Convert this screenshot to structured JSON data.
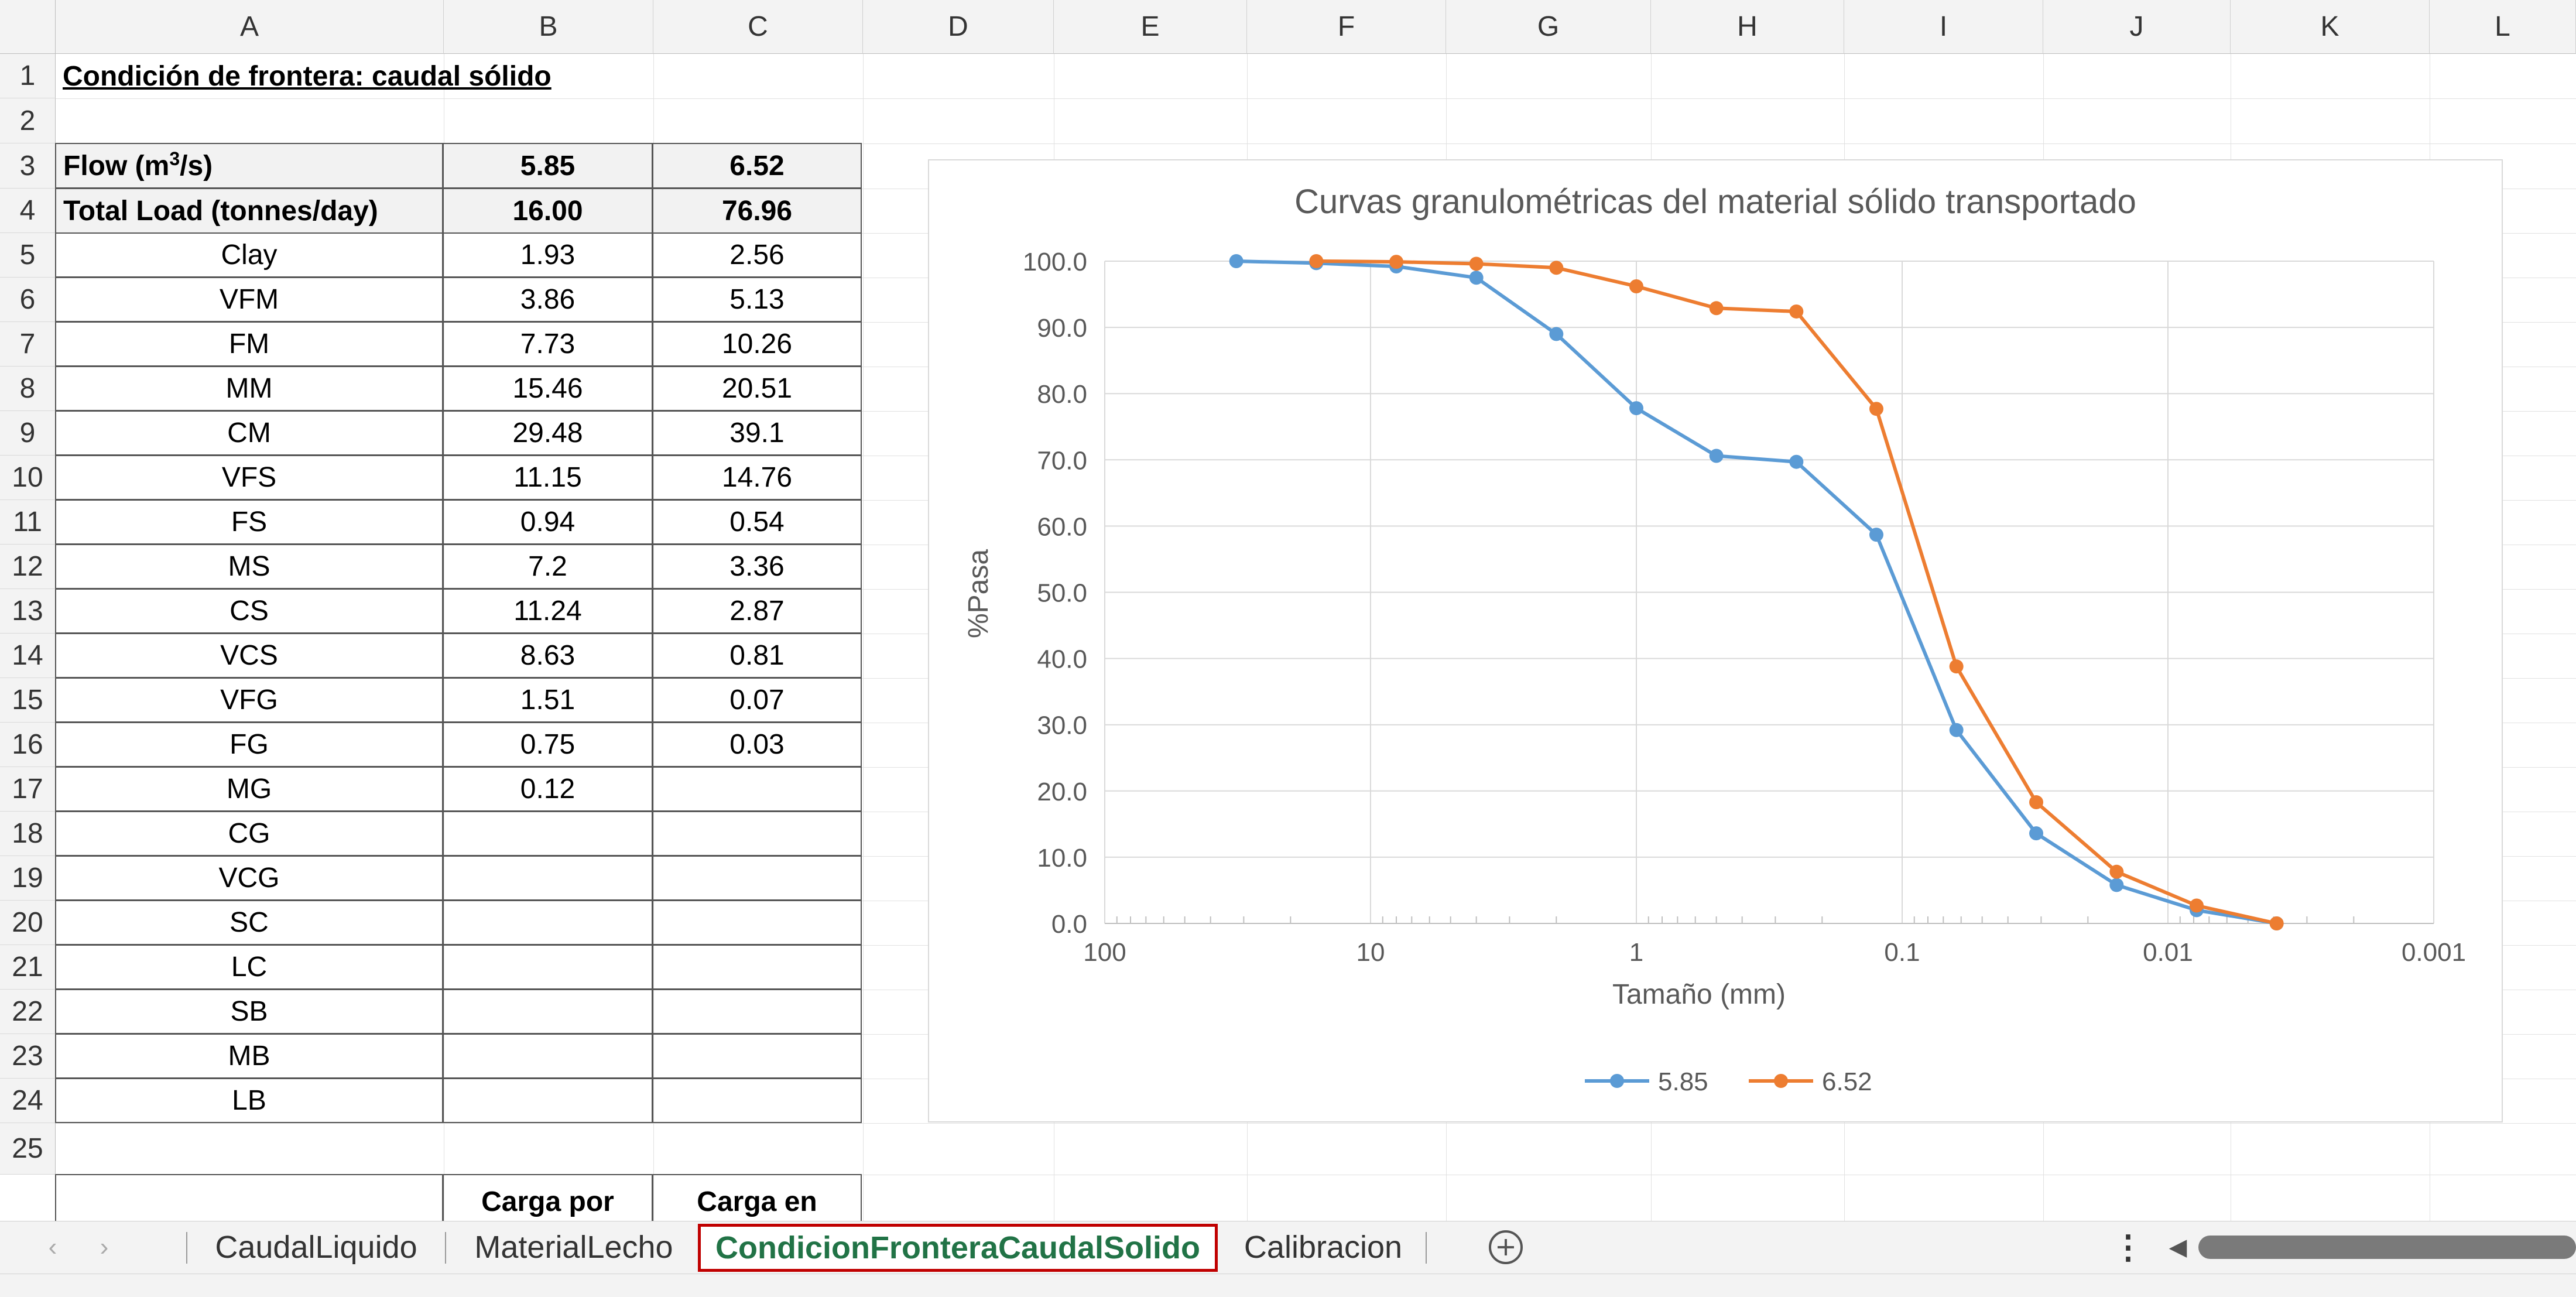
{
  "columns": [
    "A",
    "B",
    "C",
    "D",
    "E",
    "F",
    "G",
    "H",
    "I",
    "J",
    "K",
    "L"
  ],
  "rows": [
    "1",
    "2",
    "3",
    "4",
    "5",
    "6",
    "7",
    "8",
    "9",
    "10",
    "11",
    "12",
    "13",
    "14",
    "15",
    "16",
    "17",
    "18",
    "19",
    "20",
    "21",
    "22",
    "23",
    "24",
    "25"
  ],
  "sheet": {
    "title": "Condición de frontera: caudal sólido",
    "flow_label_pre": "Flow (m",
    "flow_label_sup": "3",
    "flow_label_post": "/s)",
    "flow_values": [
      "5.85",
      "6.52"
    ],
    "total_load_label": "Total Load (tonnes/day)",
    "total_load_values": [
      "16.00",
      "76.96"
    ],
    "fractions": [
      {
        "name": "Clay",
        "b": "1.93",
        "c": "2.56"
      },
      {
        "name": "VFM",
        "b": "3.86",
        "c": "5.13"
      },
      {
        "name": "FM",
        "b": "7.73",
        "c": "10.26"
      },
      {
        "name": "MM",
        "b": "15.46",
        "c": "20.51"
      },
      {
        "name": "CM",
        "b": "29.48",
        "c": "39.1"
      },
      {
        "name": "VFS",
        "b": "11.15",
        "c": "14.76"
      },
      {
        "name": "FS",
        "b": "0.94",
        "c": "0.54"
      },
      {
        "name": "MS",
        "b": "7.2",
        "c": "3.36"
      },
      {
        "name": "CS",
        "b": "11.24",
        "c": "2.87"
      },
      {
        "name": "VCS",
        "b": "8.63",
        "c": "0.81"
      },
      {
        "name": "VFG",
        "b": "1.51",
        "c": "0.07"
      },
      {
        "name": "FG",
        "b": "0.75",
        "c": "0.03"
      },
      {
        "name": "MG",
        "b": "0.12",
        "c": ""
      },
      {
        "name": "CG",
        "b": "",
        "c": ""
      },
      {
        "name": "VCG",
        "b": "",
        "c": ""
      },
      {
        "name": "SC",
        "b": "",
        "c": ""
      },
      {
        "name": "LC",
        "b": "",
        "c": ""
      },
      {
        "name": "SB",
        "b": "",
        "c": ""
      },
      {
        "name": "MB",
        "b": "",
        "c": ""
      },
      {
        "name": "LB",
        "b": "",
        "c": ""
      }
    ],
    "row26_b": "Carga por",
    "row26_c": "Carga en"
  },
  "chart_data": {
    "type": "line",
    "title": "Curvas granulométricas del material sólido transportado",
    "xlabel": "Tamaño (mm)",
    "ylabel": "%Pasa",
    "x_scale": "log-reversed",
    "xlim": [
      100,
      0.001
    ],
    "ylim": [
      0,
      100
    ],
    "x_ticks": [
      "100",
      "10",
      "1",
      "0.1",
      "0.01",
      "0.001"
    ],
    "y_ticks": [
      "0.0",
      "10.0",
      "20.0",
      "30.0",
      "40.0",
      "50.0",
      "60.0",
      "70.0",
      "80.0",
      "90.0",
      "100.0"
    ],
    "legend_position": "bottom",
    "series": [
      {
        "name": "5.85",
        "color": "#5b9bd5",
        "x": [
          32,
          16,
          8,
          4,
          2,
          1,
          0.5,
          0.25,
          0.125,
          0.0625,
          0.0313,
          0.0156,
          0.0078,
          0.0039
        ],
        "y": [
          100,
          99.7,
          99.2,
          97.5,
          89,
          77.8,
          70.6,
          69.7,
          58.7,
          29.2,
          13.6,
          5.8,
          2,
          0
        ]
      },
      {
        "name": "6.52",
        "color": "#ed7d31",
        "x": [
          16,
          8,
          4,
          2,
          1,
          0.5,
          0.25,
          0.125,
          0.0625,
          0.0313,
          0.0156,
          0.0078,
          0.0039
        ],
        "y": [
          100,
          99.9,
          99.6,
          99,
          96.2,
          92.9,
          92.4,
          77.7,
          38.8,
          18.3,
          7.8,
          2.7,
          0
        ]
      }
    ]
  },
  "tabs": {
    "items": [
      "CaudalLiquido",
      "MaterialLecho",
      "CondicionFronteraCaudalSolido",
      "Calibracion"
    ],
    "active_index": 2,
    "active_color": "#217346",
    "active_border_color": "#c00000"
  },
  "icons": {
    "nav_prev": "chevron-left-icon",
    "nav_next": "chevron-right-icon",
    "add_sheet": "plus-circle-icon",
    "more": "vertical-ellipsis-icon",
    "scroll_left": "triangle-left-icon"
  }
}
